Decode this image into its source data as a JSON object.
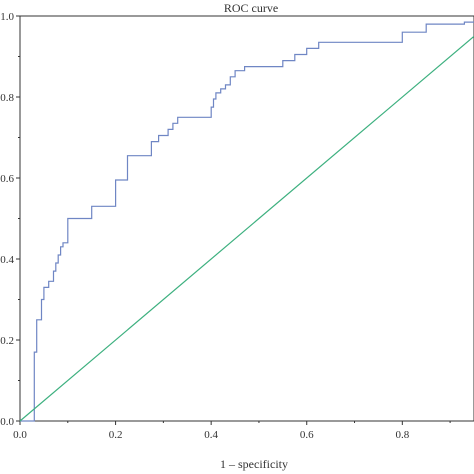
{
  "chart_data": {
    "type": "line",
    "title": "ROC curve",
    "xlabel": "1 – specificity",
    "ylabel": "",
    "xlim": [
      0,
      0.95
    ],
    "ylim": [
      0,
      1.0
    ],
    "x_ticks": [
      "0.0",
      "0.2",
      "0.4",
      "0.6",
      "0.8"
    ],
    "x_tick_values": [
      0,
      0.2,
      0.4,
      0.6,
      0.8
    ],
    "y_ticks": [
      "0.0",
      "0.2",
      "0.4",
      "0.6",
      "0.8",
      "1.0"
    ],
    "y_tick_values": [
      0,
      0.2,
      0.4,
      0.6,
      0.8,
      1.0
    ],
    "colors": {
      "roc": "#6f86c4",
      "reference": "#3db07f",
      "axis": "#333333"
    },
    "series": [
      {
        "x": [
          0.0,
          0.03,
          0.03,
          0.035,
          0.035,
          0.045,
          0.045,
          0.05,
          0.05,
          0.06,
          0.06,
          0.07,
          0.07,
          0.075,
          0.075,
          0.08,
          0.08,
          0.085,
          0.085,
          0.09,
          0.09,
          0.1,
          0.1,
          0.15,
          0.15,
          0.2,
          0.2,
          0.225,
          0.225,
          0.275,
          0.275,
          0.29,
          0.29,
          0.31,
          0.31,
          0.32,
          0.32,
          0.33,
          0.33,
          0.335,
          0.335,
          0.35,
          0.35,
          0.4,
          0.4,
          0.405,
          0.405,
          0.41,
          0.41,
          0.42,
          0.42,
          0.43,
          0.43,
          0.44,
          0.44,
          0.45,
          0.45,
          0.47,
          0.47,
          0.525,
          0.525,
          0.55,
          0.55,
          0.56,
          0.56,
          0.575,
          0.575,
          0.6,
          0.6,
          0.625,
          0.625,
          0.8,
          0.8,
          0.85,
          0.85,
          0.93,
          0.93,
          0.95
        ],
        "y": [
          0.0,
          0.0,
          0.17,
          0.17,
          0.25,
          0.25,
          0.3,
          0.3,
          0.33,
          0.33,
          0.345,
          0.345,
          0.37,
          0.37,
          0.39,
          0.39,
          0.41,
          0.41,
          0.43,
          0.43,
          0.44,
          0.44,
          0.5,
          0.5,
          0.53,
          0.53,
          0.595,
          0.595,
          0.655,
          0.655,
          0.69,
          0.69,
          0.705,
          0.705,
          0.72,
          0.72,
          0.735,
          0.735,
          0.75,
          0.75,
          0.75,
          0.75,
          0.75,
          0.75,
          0.775,
          0.775,
          0.795,
          0.795,
          0.81,
          0.81,
          0.82,
          0.82,
          0.83,
          0.83,
          0.85,
          0.85,
          0.865,
          0.865,
          0.875,
          0.875,
          0.875,
          0.875,
          0.89,
          0.89,
          0.89,
          0.89,
          0.905,
          0.905,
          0.92,
          0.92,
          0.935,
          0.935,
          0.96,
          0.96,
          0.98,
          0.98,
          0.985,
          0.985
        ]
      },
      {
        "x": [
          0.0,
          0.95
        ],
        "y": [
          0.0,
          0.95
        ]
      }
    ]
  }
}
